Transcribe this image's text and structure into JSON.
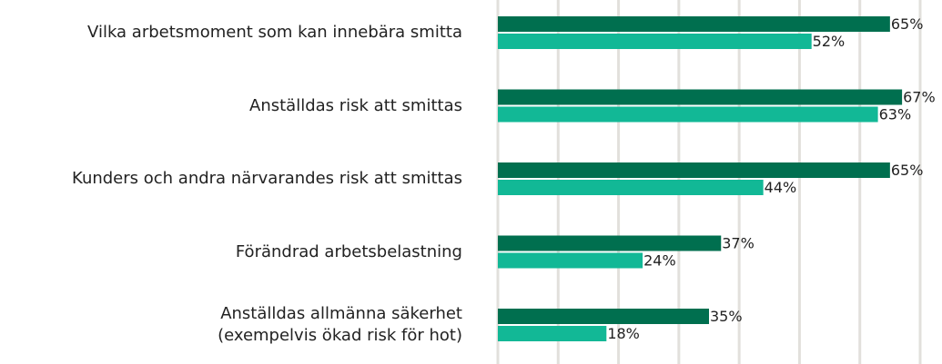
{
  "chart_data": {
    "type": "hbar",
    "categories": [
      "Vilka arbetsmoment som kan innebära smitta",
      "Anställdas risk att smittas",
      "Kunders och andra närvarandes risk att smittas",
      "Förändrad arbetsbelastning",
      "Anställdas allmänna säkerhet\n(exempelvis ökad risk för hot)"
    ],
    "series": [
      {
        "color": "#006f4f",
        "values": [
          65,
          67,
          65,
          37,
          35
        ],
        "value_labels": [
          "65%",
          "67%",
          "65%",
          "37%",
          "35%"
        ]
      },
      {
        "color": "#12b896",
        "values": [
          52,
          63,
          44,
          24,
          18
        ],
        "value_labels": [
          "52%",
          "63%",
          "44%",
          "24%",
          "18%"
        ]
      }
    ],
    "xlim": [
      0,
      70
    ],
    "xticks": [
      0,
      10,
      20,
      30,
      40,
      50,
      60,
      70
    ],
    "grid": true
  }
}
